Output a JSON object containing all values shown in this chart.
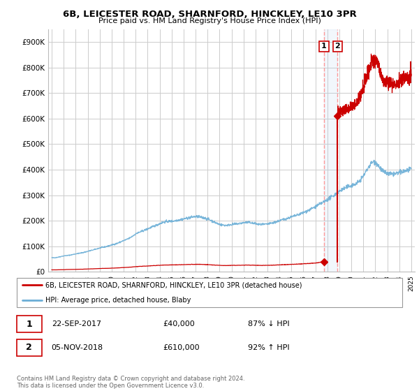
{
  "title": "6B, LEICESTER ROAD, SHARNFORD, HINCKLEY, LE10 3PR",
  "subtitle": "Price paid vs. HM Land Registry's House Price Index (HPI)",
  "hpi_label": "HPI: Average price, detached house, Blaby",
  "property_label": "6B, LEICESTER ROAD, SHARNFORD, HINCKLEY, LE10 3PR (detached house)",
  "transaction1_date": "22-SEP-2017",
  "transaction1_price": "£40,000",
  "transaction1_hpi": "87% ↓ HPI",
  "transaction2_date": "05-NOV-2018",
  "transaction2_price": "£610,000",
  "transaction2_hpi": "92% ↑ HPI",
  "footer": "Contains HM Land Registry data © Crown copyright and database right 2024.\nThis data is licensed under the Open Government Licence v3.0.",
  "ylim": [
    0,
    950000
  ],
  "yticks": [
    0,
    100000,
    200000,
    300000,
    400000,
    500000,
    600000,
    700000,
    800000,
    900000
  ],
  "ytick_labels": [
    "£0",
    "£100K",
    "£200K",
    "£300K",
    "£400K",
    "£500K",
    "£600K",
    "£700K",
    "£800K",
    "£900K"
  ],
  "hpi_color": "#6baed6",
  "property_color": "#cc0000",
  "vline_color": "#ff9999",
  "shade_color": "#ddeeff",
  "transaction1_x": 2017.72,
  "transaction1_y": 40000,
  "transaction2_x": 2018.84,
  "transaction2_y": 610000,
  "hpi_base_years": [
    1995.0,
    1995.5,
    1996.0,
    1996.5,
    1997.0,
    1997.5,
    1998.0,
    1998.5,
    1999.0,
    1999.5,
    2000.0,
    2000.5,
    2001.0,
    2001.5,
    2002.0,
    2002.5,
    2003.0,
    2003.5,
    2004.0,
    2004.5,
    2005.0,
    2005.5,
    2006.0,
    2006.5,
    2007.0,
    2007.5,
    2008.0,
    2008.5,
    2009.0,
    2009.5,
    2010.0,
    2010.5,
    2011.0,
    2011.5,
    2012.0,
    2012.5,
    2013.0,
    2013.5,
    2014.0,
    2014.5,
    2015.0,
    2015.5,
    2016.0,
    2016.5,
    2017.0,
    2017.5,
    2018.0,
    2018.5,
    2019.0,
    2019.5,
    2020.0,
    2020.5,
    2021.0,
    2021.5,
    2022.0,
    2022.5,
    2023.0,
    2023.5,
    2024.0,
    2024.5,
    2025.0
  ],
  "hpi_base_values": [
    55000,
    57000,
    62000,
    65000,
    70000,
    74000,
    80000,
    86000,
    93000,
    98000,
    105000,
    112000,
    122000,
    132000,
    148000,
    158000,
    168000,
    178000,
    188000,
    196000,
    198000,
    202000,
    207000,
    212000,
    216000,
    213000,
    207000,
    196000,
    186000,
    182000,
    185000,
    188000,
    192000,
    193000,
    188000,
    185000,
    187000,
    192000,
    200000,
    207000,
    215000,
    222000,
    232000,
    242000,
    255000,
    268000,
    282000,
    298000,
    315000,
    328000,
    338000,
    348000,
    375000,
    415000,
    430000,
    400000,
    385000,
    382000,
    388000,
    395000,
    400000
  ],
  "prop_base_years": [
    1995.0,
    1995.5,
    1996.0,
    1996.5,
    1997.0,
    1997.5,
    1998.0,
    1998.5,
    1999.0,
    1999.5,
    2000.0,
    2000.5,
    2001.0,
    2001.5,
    2002.0,
    2002.5,
    2003.0,
    2003.5,
    2004.0,
    2004.5,
    2005.0,
    2005.5,
    2006.0,
    2006.5,
    2007.0,
    2007.5,
    2008.0,
    2008.5,
    2009.0,
    2009.5,
    2010.0,
    2010.5,
    2011.0,
    2011.5,
    2012.0,
    2012.5,
    2013.0,
    2013.5,
    2014.0,
    2014.5,
    2015.0,
    2015.5,
    2016.0,
    2016.5,
    2017.0,
    2017.72,
    2018.84,
    2019.0,
    2019.5,
    2020.0,
    2020.5,
    2021.0,
    2021.5,
    2022.0,
    2022.5,
    2023.0,
    2023.5,
    2024.0,
    2024.5,
    2025.0
  ],
  "prop_base_values": [
    7500,
    7600,
    8300,
    8800,
    9400,
    10000,
    10800,
    11600,
    12600,
    13200,
    14100,
    15100,
    16500,
    17800,
    19900,
    21300,
    22700,
    24000,
    25400,
    26400,
    26700,
    27200,
    27900,
    28500,
    29100,
    28700,
    27800,
    26400,
    25100,
    24500,
    24900,
    25300,
    25800,
    26000,
    25400,
    24900,
    25200,
    25900,
    26900,
    27900,
    28900,
    29900,
    31200,
    32600,
    34400,
    40000,
    610000,
    624000,
    638000,
    648000,
    665000,
    720000,
    795000,
    830000,
    770000,
    740000,
    735000,
    745000,
    760000,
    770000
  ],
  "xlim_min": 1994.7,
  "xlim_max": 2025.3
}
